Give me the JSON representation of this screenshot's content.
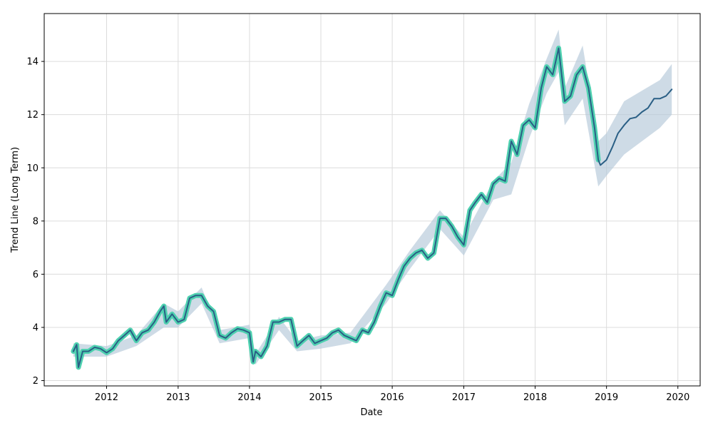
{
  "chart_data": {
    "type": "line",
    "title": "",
    "xlabel": "Date",
    "ylabel": "Trend Line (Long Term)",
    "x_type": "date",
    "xlim": [
      "2011-02-16",
      "2020-04-24"
    ],
    "ylim": [
      1.8,
      15.8
    ],
    "xticks": [
      {
        "value": "2012-01-01",
        "label": "2012"
      },
      {
        "value": "2013-01-01",
        "label": "2013"
      },
      {
        "value": "2014-01-01",
        "label": "2014"
      },
      {
        "value": "2015-01-01",
        "label": "2015"
      },
      {
        "value": "2016-01-01",
        "label": "2016"
      },
      {
        "value": "2017-01-01",
        "label": "2017"
      },
      {
        "value": "2018-01-01",
        "label": "2018"
      },
      {
        "value": "2019-01-01",
        "label": "2019"
      },
      {
        "value": "2020-01-01",
        "label": "2020"
      }
    ],
    "yticks": [
      2,
      4,
      6,
      8,
      10,
      12,
      14
    ],
    "grid": true,
    "legend": "none",
    "colors": {
      "trend": "#2a5f85",
      "observed": "#4fd1b0",
      "band": "#b4c8d8"
    },
    "series": [
      {
        "role": "observed",
        "x": [
          "2011-07-15",
          "2011-08-01",
          "2011-08-10",
          "2011-09-01",
          "2011-10-01",
          "2011-11-01",
          "2011-12-01",
          "2012-01-01",
          "2012-02-01",
          "2012-03-01",
          "2012-04-01",
          "2012-05-01",
          "2012-06-01",
          "2012-07-01",
          "2012-08-01",
          "2012-09-01",
          "2012-10-01",
          "2012-10-20",
          "2012-11-01",
          "2012-12-01",
          "2013-01-01",
          "2013-02-01",
          "2013-03-01",
          "2013-04-01",
          "2013-05-01",
          "2013-06-01",
          "2013-07-01",
          "2013-08-01",
          "2013-09-01",
          "2013-10-01",
          "2013-11-01",
          "2013-12-01",
          "2014-01-01",
          "2014-01-20",
          "2014-02-01",
          "2014-03-01",
          "2014-04-01",
          "2014-05-01",
          "2014-06-01",
          "2014-07-01",
          "2014-08-01",
          "2014-09-01",
          "2014-10-01",
          "2014-11-01",
          "2014-12-01",
          "2015-01-01",
          "2015-02-01",
          "2015-03-01",
          "2015-04-01",
          "2015-05-01",
          "2015-06-01",
          "2015-07-01",
          "2015-08-01",
          "2015-09-01",
          "2015-10-01",
          "2015-11-01",
          "2015-12-01",
          "2016-01-01",
          "2016-02-01",
          "2016-03-01",
          "2016-04-01",
          "2016-05-01",
          "2016-06-01",
          "2016-07-01",
          "2016-08-01",
          "2016-09-01",
          "2016-10-01",
          "2016-11-01",
          "2016-12-01",
          "2017-01-01",
          "2017-02-01",
          "2017-03-01",
          "2017-04-01",
          "2017-05-01",
          "2017-06-01",
          "2017-07-01",
          "2017-08-01",
          "2017-09-01",
          "2017-10-01",
          "2017-11-01",
          "2017-12-01",
          "2018-01-01",
          "2018-02-01",
          "2018-03-01",
          "2018-04-01",
          "2018-05-01",
          "2018-06-01",
          "2018-07-01",
          "2018-08-01",
          "2018-09-01",
          "2018-10-01",
          "2018-11-01",
          "2018-11-20"
        ],
        "y": [
          3.1,
          3.35,
          2.5,
          3.1,
          3.1,
          3.25,
          3.2,
          3.05,
          3.2,
          3.5,
          3.7,
          3.9,
          3.5,
          3.8,
          3.9,
          4.2,
          4.6,
          4.8,
          4.2,
          4.5,
          4.2,
          4.3,
          5.1,
          5.2,
          5.2,
          4.8,
          4.6,
          3.7,
          3.6,
          3.8,
          3.95,
          3.9,
          3.8,
          2.7,
          3.1,
          2.9,
          3.3,
          4.2,
          4.2,
          4.3,
          4.3,
          3.3,
          3.5,
          3.7,
          3.4,
          3.5,
          3.6,
          3.8,
          3.9,
          3.7,
          3.6,
          3.5,
          3.9,
          3.8,
          4.2,
          4.8,
          5.3,
          5.2,
          5.8,
          6.3,
          6.6,
          6.8,
          6.9,
          6.6,
          6.8,
          8.1,
          8.1,
          7.8,
          7.4,
          7.1,
          8.4,
          8.7,
          9.0,
          8.7,
          9.4,
          9.6,
          9.5,
          11.0,
          10.5,
          11.6,
          11.8,
          11.5,
          13.0,
          13.8,
          13.5,
          14.5,
          12.5,
          12.7,
          13.5,
          13.8,
          13.0,
          11.5,
          10.3
        ]
      },
      {
        "role": "trend",
        "x": [
          "2011-07-15",
          "2011-08-01",
          "2011-08-10",
          "2011-09-01",
          "2011-10-01",
          "2011-11-01",
          "2011-12-01",
          "2012-01-01",
          "2012-02-01",
          "2012-03-01",
          "2012-04-01",
          "2012-05-01",
          "2012-06-01",
          "2012-07-01",
          "2012-08-01",
          "2012-09-01",
          "2012-10-01",
          "2012-10-20",
          "2012-11-01",
          "2012-12-01",
          "2013-01-01",
          "2013-02-01",
          "2013-03-01",
          "2013-04-01",
          "2013-05-01",
          "2013-06-01",
          "2013-07-01",
          "2013-08-01",
          "2013-09-01",
          "2013-10-01",
          "2013-11-01",
          "2013-12-01",
          "2014-01-01",
          "2014-01-20",
          "2014-02-01",
          "2014-03-01",
          "2014-04-01",
          "2014-05-01",
          "2014-06-01",
          "2014-07-01",
          "2014-08-01",
          "2014-09-01",
          "2014-10-01",
          "2014-11-01",
          "2014-12-01",
          "2015-01-01",
          "2015-02-01",
          "2015-03-01",
          "2015-04-01",
          "2015-05-01",
          "2015-06-01",
          "2015-07-01",
          "2015-08-01",
          "2015-09-01",
          "2015-10-01",
          "2015-11-01",
          "2015-12-01",
          "2016-01-01",
          "2016-02-01",
          "2016-03-01",
          "2016-04-01",
          "2016-05-01",
          "2016-06-01",
          "2016-07-01",
          "2016-08-01",
          "2016-09-01",
          "2016-10-01",
          "2016-11-01",
          "2016-12-01",
          "2017-01-01",
          "2017-02-01",
          "2017-03-01",
          "2017-04-01",
          "2017-05-01",
          "2017-06-01",
          "2017-07-01",
          "2017-08-01",
          "2017-09-01",
          "2017-10-01",
          "2017-11-01",
          "2017-12-01",
          "2018-01-01",
          "2018-02-01",
          "2018-03-01",
          "2018-04-01",
          "2018-05-01",
          "2018-06-01",
          "2018-07-01",
          "2018-08-01",
          "2018-09-01",
          "2018-10-01",
          "2018-11-01",
          "2018-11-20",
          "2018-12-01",
          "2019-01-01",
          "2019-02-01",
          "2019-03-01",
          "2019-04-01",
          "2019-05-01",
          "2019-06-01",
          "2019-07-01",
          "2019-08-01",
          "2019-09-01",
          "2019-10-01",
          "2019-11-01",
          "2019-12-01"
        ],
        "y": [
          3.1,
          3.35,
          2.5,
          3.1,
          3.1,
          3.25,
          3.2,
          3.05,
          3.2,
          3.5,
          3.7,
          3.9,
          3.5,
          3.8,
          3.9,
          4.2,
          4.6,
          4.8,
          4.2,
          4.5,
          4.2,
          4.3,
          5.1,
          5.2,
          5.2,
          4.8,
          4.6,
          3.7,
          3.6,
          3.8,
          3.95,
          3.9,
          3.8,
          2.7,
          3.1,
          2.9,
          3.3,
          4.2,
          4.2,
          4.3,
          4.3,
          3.3,
          3.5,
          3.7,
          3.4,
          3.5,
          3.6,
          3.8,
          3.9,
          3.7,
          3.6,
          3.5,
          3.9,
          3.8,
          4.2,
          4.8,
          5.3,
          5.2,
          5.8,
          6.3,
          6.6,
          6.8,
          6.9,
          6.6,
          6.8,
          8.1,
          8.1,
          7.8,
          7.4,
          7.1,
          8.4,
          8.7,
          9.0,
          8.7,
          9.4,
          9.6,
          9.5,
          11.0,
          10.5,
          11.6,
          11.8,
          11.5,
          13.0,
          13.8,
          13.5,
          14.5,
          12.5,
          12.7,
          13.5,
          13.8,
          13.0,
          11.5,
          10.3,
          10.1,
          10.3,
          10.8,
          11.3,
          11.6,
          11.85,
          11.9,
          12.1,
          12.25,
          12.6,
          12.6,
          12.7,
          12.95
        ]
      },
      {
        "role": "band",
        "x": [
          "2011-07-15",
          "2012-01-01",
          "2012-06-01",
          "2012-10-20",
          "2013-01-01",
          "2013-05-01",
          "2013-08-01",
          "2014-01-01",
          "2014-02-01",
          "2014-06-01",
          "2014-09-01",
          "2015-01-01",
          "2015-06-01",
          "2015-12-01",
          "2016-04-01",
          "2016-09-01",
          "2017-01-01",
          "2017-06-01",
          "2017-09-01",
          "2017-12-01",
          "2018-03-01",
          "2018-05-01",
          "2018-06-01",
          "2018-09-01",
          "2018-11-20",
          "2019-01-01",
          "2019-04-01",
          "2019-07-01",
          "2019-10-01",
          "2019-12-01"
        ],
        "lower": [
          2.9,
          2.9,
          3.3,
          4.0,
          4.0,
          4.9,
          3.4,
          3.6,
          2.6,
          3.9,
          3.1,
          3.2,
          3.4,
          4.9,
          6.2,
          7.7,
          6.7,
          8.8,
          9.0,
          11.1,
          12.8,
          13.6,
          11.6,
          12.6,
          9.3,
          9.7,
          10.5,
          11.0,
          11.5,
          12.0
        ],
        "upper": [
          3.4,
          3.3,
          3.7,
          4.9,
          4.6,
          5.5,
          3.9,
          4.1,
          3.0,
          4.4,
          3.5,
          3.7,
          3.8,
          5.6,
          6.9,
          8.4,
          7.4,
          9.5,
          10.2,
          12.4,
          14.1,
          15.2,
          13.0,
          14.6,
          11.0,
          11.3,
          12.5,
          12.9,
          13.3,
          13.9
        ]
      }
    ]
  }
}
